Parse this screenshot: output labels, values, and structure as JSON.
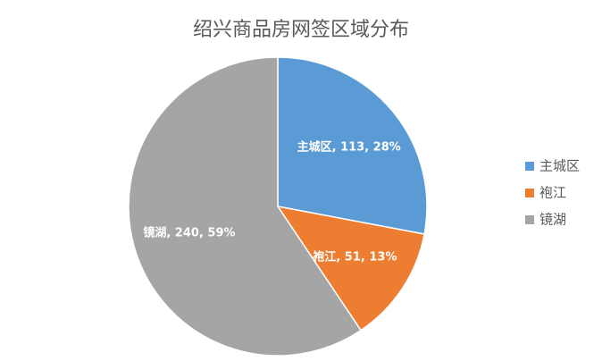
{
  "chart_data": {
    "type": "pie",
    "title": "绍兴商品房网签区域分布",
    "categories": [
      "主城区",
      "袍江",
      "镜湖"
    ],
    "values": [
      113,
      51,
      240
    ],
    "value_labels": [
      "主城区, 113, 28%",
      "袍江, 51, 13%",
      "镜湖, 240, 59%"
    ],
    "colors": [
      "#5b9bd5",
      "#ed7d31",
      "#a5a5a5"
    ],
    "legend": "right"
  }
}
